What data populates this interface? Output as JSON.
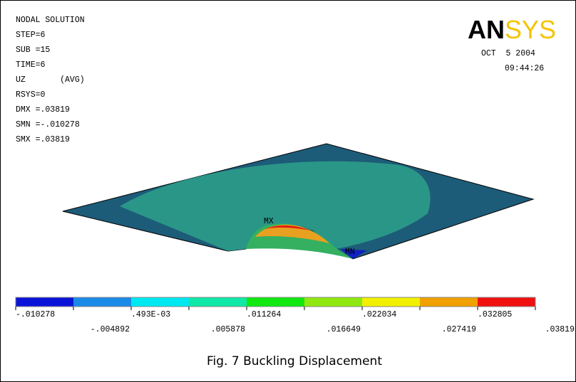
{
  "info_lines": [
    "NODAL SOLUTION",
    "STEP=6",
    "SUB =15",
    "TIME=6",
    "UZ       (AVG)",
    "RSYS=0",
    "DMX =.03819",
    "SMN =-.010278",
    "SMX =.03819"
  ],
  "logo": {
    "an": "AN",
    "sys": "SYS"
  },
  "date": "OCT  5 2004",
  "time": "09:44:26",
  "annotations": {
    "max": "MX",
    "min": "MN"
  },
  "legend": {
    "labels": [
      "-.010278",
      "-.004892",
      ".493E-03",
      ".005878",
      ".011264",
      ".016649",
      ".022034",
      ".027419",
      ".032805",
      ".03819"
    ]
  },
  "caption": "Fig. 7 Buckling Displacement"
}
